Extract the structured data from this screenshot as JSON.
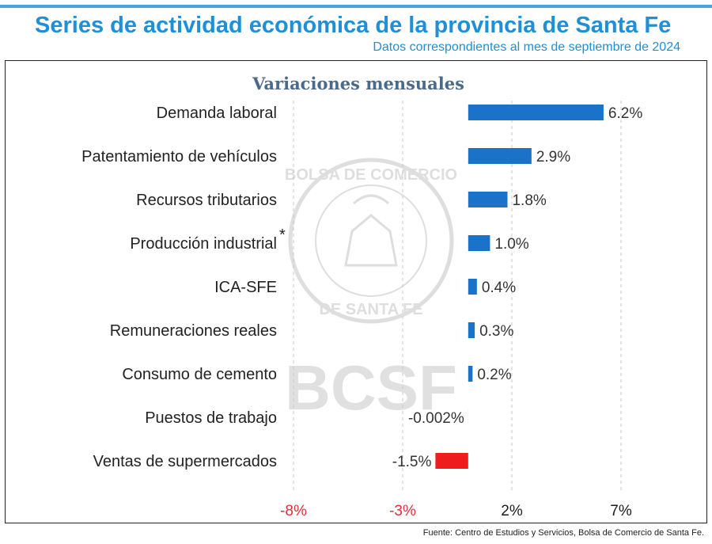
{
  "header": {
    "title": "Series de actividad económica de la provincia de Santa Fe",
    "subtitle": "Datos correspondientes al mes de septiembre de 2024",
    "accent_color": "#1f8fd6"
  },
  "watermark": {
    "seal_text": "BOLSA DE COMERCIO DE SANTA FE",
    "logo_text": "BCSF"
  },
  "chart_data": {
    "type": "bar",
    "orientation": "horizontal",
    "title": "Variaciones mensuales",
    "categories": [
      "Demanda laboral",
      "Patentamiento de vehículos",
      "Recursos tributarios",
      "Producción industrial",
      "ICA-SFE",
      "Remuneraciones reales",
      "Consumo de cemento",
      "Puestos de trabajo",
      "Ventas de supermercados"
    ],
    "values": [
      6.2,
      2.9,
      1.8,
      1.0,
      0.4,
      0.3,
      0.2,
      -0.002,
      -1.5
    ],
    "value_labels": [
      "6.2%",
      "2.9%",
      "1.8%",
      "1.0%",
      "0.4%",
      "0.3%",
      "0.2%",
      "-0.002%",
      "-1.5%"
    ],
    "category_marks": {
      "Producción industrial": "*"
    },
    "x_ticks": [
      -8,
      -3,
      2,
      7
    ],
    "x_tick_labels": [
      "-8%",
      "-3%",
      "2%",
      "7%"
    ],
    "xlim": [
      -8,
      7
    ],
    "grid": "vertical dashed",
    "positive_color": "#1a73c8",
    "negative_color": "#ee1c1c",
    "negative_tick_color": "#e0303a"
  },
  "source_note": "Fuente: Centro de Estudios y Servicios, Bolsa de Comercio de Santa Fe."
}
